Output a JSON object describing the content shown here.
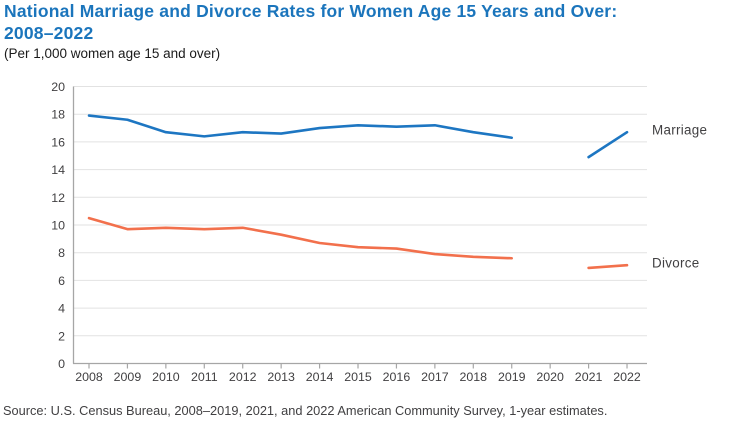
{
  "colors": {
    "title_blue": "#1b75bc",
    "text_dark": "#414042",
    "grid": "#e2e2e2",
    "axis": "#a6a6a6",
    "marriage_blue": "#1d76c2",
    "divorce_orange": "#f2704c"
  },
  "chart_data": {
    "type": "line",
    "title": "National Marriage and Divorce Rates for Women Age 15 Years and Over: 2008–2022",
    "title_lines": [
      "National Marriage and Divorce Rates for Women Age 15 Years and Over:",
      "2008–2022"
    ],
    "subtitle": "(Per 1,000 women age 15 and over)",
    "source": "Source: U.S. Census Bureau, 2008–2019, 2021, and 2022 American Community Survey, 1-year estimates.",
    "x": [
      2008,
      2009,
      2010,
      2011,
      2012,
      2013,
      2014,
      2015,
      2016,
      2017,
      2018,
      2019,
      2020,
      2021,
      2022
    ],
    "ylim": [
      0,
      20
    ],
    "yticks": [
      0,
      2,
      4,
      6,
      8,
      10,
      12,
      14,
      16,
      18,
      20
    ],
    "grid": "horizontal",
    "legend_position": "labels-at-right-line-ends",
    "series": [
      {
        "name": "Marriage",
        "color": "#1d76c2",
        "values": [
          17.9,
          17.6,
          16.7,
          16.4,
          16.7,
          16.6,
          17.0,
          17.2,
          17.1,
          17.2,
          16.7,
          16.3,
          null,
          14.9,
          16.7
        ]
      },
      {
        "name": "Divorce",
        "color": "#f2704c",
        "values": [
          10.5,
          9.7,
          9.8,
          9.7,
          9.8,
          9.3,
          8.7,
          8.4,
          8.3,
          7.9,
          7.7,
          7.6,
          null,
          6.9,
          7.1
        ]
      }
    ]
  }
}
